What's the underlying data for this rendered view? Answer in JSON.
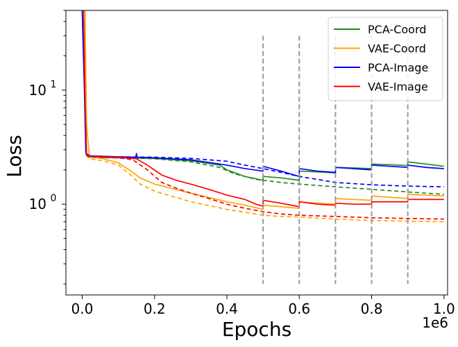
{
  "chart_data": {
    "type": "line",
    "title": "",
    "xlabel": "Epochs",
    "ylabel": "Loss",
    "x_scale_label": "1e6",
    "xlim": [
      -0.045,
      1.01
    ],
    "ylim": [
      0.16,
      50
    ],
    "yscale": "log",
    "x_ticks": [
      {
        "value": 0.0,
        "label": "0.0"
      },
      {
        "value": 0.2,
        "label": "0.2"
      },
      {
        "value": 0.4,
        "label": "0.4"
      },
      {
        "value": 0.6,
        "label": "0.6"
      },
      {
        "value": 0.8,
        "label": "0.8"
      },
      {
        "value": 1.0,
        "label": "1.0"
      }
    ],
    "y_ticks": [
      {
        "value": 1,
        "base": "10",
        "exp": "0"
      },
      {
        "value": 10,
        "base": "10",
        "exp": "1"
      }
    ],
    "vlines": {
      "x": [
        0.5,
        0.6,
        0.7,
        0.8,
        0.9
      ],
      "ymin": 0.2,
      "ymax": 30,
      "color": "#999999",
      "style": "dashed"
    },
    "legend_position": "top-right",
    "series": [
      {
        "name": "PCA-Coord",
        "color": "#228b22",
        "style": "solid",
        "points": [
          [
            0.0,
            50
          ],
          [
            0.008,
            8
          ],
          [
            0.012,
            2.7
          ],
          [
            0.02,
            2.58
          ],
          [
            0.1,
            2.55
          ],
          [
            0.2,
            2.52
          ],
          [
            0.3,
            2.4
          ],
          [
            0.38,
            2.2
          ],
          [
            0.4,
            2.0
          ],
          [
            0.45,
            1.75
          ],
          [
            0.5,
            1.62
          ],
          [
            0.5,
            1.75
          ],
          [
            0.55,
            1.7
          ],
          [
            0.6,
            1.62
          ],
          [
            0.6,
            1.95
          ],
          [
            0.65,
            1.92
          ],
          [
            0.7,
            1.88
          ],
          [
            0.7,
            2.1
          ],
          [
            0.75,
            2.08
          ],
          [
            0.8,
            2.05
          ],
          [
            0.8,
            2.25
          ],
          [
            0.85,
            2.22
          ],
          [
            0.9,
            2.18
          ],
          [
            0.9,
            2.35
          ],
          [
            0.95,
            2.25
          ],
          [
            1.0,
            2.15
          ]
        ]
      },
      {
        "name": "PCA-Coord (dashed)",
        "color": "#228b22",
        "style": "dashed",
        "points": [
          [
            0.01,
            2.7
          ],
          [
            0.02,
            2.58
          ],
          [
            0.1,
            2.55
          ],
          [
            0.2,
            2.5
          ],
          [
            0.3,
            2.35
          ],
          [
            0.38,
            2.1
          ],
          [
            0.42,
            1.85
          ],
          [
            0.48,
            1.65
          ],
          [
            0.55,
            1.55
          ],
          [
            0.6,
            1.5
          ],
          [
            0.7,
            1.42
          ],
          [
            0.8,
            1.35
          ],
          [
            0.9,
            1.28
          ],
          [
            1.0,
            1.22
          ]
        ]
      },
      {
        "name": "VAE-Coord",
        "color": "#ffa500",
        "style": "solid",
        "points": [
          [
            0.008,
            50
          ],
          [
            0.012,
            5
          ],
          [
            0.02,
            2.6
          ],
          [
            0.06,
            2.5
          ],
          [
            0.1,
            2.3
          ],
          [
            0.13,
            2.0
          ],
          [
            0.16,
            1.7
          ],
          [
            0.2,
            1.5
          ],
          [
            0.3,
            1.25
          ],
          [
            0.4,
            1.05
          ],
          [
            0.45,
            0.98
          ],
          [
            0.5,
            0.9
          ],
          [
            0.5,
            0.98
          ],
          [
            0.55,
            0.95
          ],
          [
            0.6,
            0.92
          ],
          [
            0.6,
            1.05
          ],
          [
            0.65,
            1.02
          ],
          [
            0.7,
            1.0
          ],
          [
            0.7,
            1.12
          ],
          [
            0.75,
            1.1
          ],
          [
            0.8,
            1.08
          ],
          [
            0.8,
            1.18
          ],
          [
            0.85,
            1.15
          ],
          [
            0.9,
            1.12
          ],
          [
            0.9,
            1.22
          ],
          [
            0.95,
            1.2
          ],
          [
            1.0,
            1.18
          ]
        ]
      },
      {
        "name": "VAE-Coord (dashed)",
        "color": "#ffa500",
        "style": "dashed",
        "points": [
          [
            0.01,
            2.7
          ],
          [
            0.02,
            2.5
          ],
          [
            0.06,
            2.4
          ],
          [
            0.1,
            2.2
          ],
          [
            0.13,
            1.85
          ],
          [
            0.16,
            1.5
          ],
          [
            0.2,
            1.3
          ],
          [
            0.3,
            1.05
          ],
          [
            0.4,
            0.9
          ],
          [
            0.45,
            0.85
          ],
          [
            0.5,
            0.8
          ],
          [
            0.55,
            0.78
          ],
          [
            0.6,
            0.77
          ],
          [
            0.7,
            0.74
          ],
          [
            0.8,
            0.72
          ],
          [
            0.9,
            0.71
          ],
          [
            1.0,
            0.7
          ]
        ]
      },
      {
        "name": "PCA-Image",
        "color": "#0000ff",
        "style": "solid",
        "points": [
          [
            0.0,
            50
          ],
          [
            0.006,
            10
          ],
          [
            0.01,
            2.8
          ],
          [
            0.02,
            2.65
          ],
          [
            0.1,
            2.6
          ],
          [
            0.148,
            2.58
          ],
          [
            0.15,
            2.78
          ],
          [
            0.152,
            2.58
          ],
          [
            0.2,
            2.55
          ],
          [
            0.3,
            2.45
          ],
          [
            0.4,
            2.2
          ],
          [
            0.45,
            2.05
          ],
          [
            0.5,
            1.95
          ],
          [
            0.5,
            2.15
          ],
          [
            0.55,
            1.95
          ],
          [
            0.6,
            1.75
          ],
          [
            0.6,
            2.05
          ],
          [
            0.65,
            1.95
          ],
          [
            0.7,
            1.9
          ],
          [
            0.7,
            2.1
          ],
          [
            0.75,
            2.05
          ],
          [
            0.8,
            2.0
          ],
          [
            0.8,
            2.2
          ],
          [
            0.85,
            2.15
          ],
          [
            0.9,
            2.1
          ],
          [
            0.9,
            2.2
          ],
          [
            0.95,
            2.1
          ],
          [
            1.0,
            2.05
          ]
        ]
      },
      {
        "name": "PCA-Image (dashed)",
        "color": "#0000ff",
        "style": "dashed",
        "points": [
          [
            0.01,
            2.8
          ],
          [
            0.02,
            2.65
          ],
          [
            0.1,
            2.6
          ],
          [
            0.2,
            2.58
          ],
          [
            0.3,
            2.52
          ],
          [
            0.4,
            2.38
          ],
          [
            0.45,
            2.2
          ],
          [
            0.5,
            2.05
          ],
          [
            0.55,
            1.9
          ],
          [
            0.6,
            1.75
          ],
          [
            0.65,
            1.65
          ],
          [
            0.7,
            1.55
          ],
          [
            0.8,
            1.48
          ],
          [
            0.9,
            1.44
          ],
          [
            1.0,
            1.42
          ]
        ]
      },
      {
        "name": "VAE-Image",
        "color": "#ff0000",
        "style": "solid",
        "points": [
          [
            0.004,
            50
          ],
          [
            0.008,
            8
          ],
          [
            0.012,
            2.7
          ],
          [
            0.02,
            2.62
          ],
          [
            0.1,
            2.58
          ],
          [
            0.15,
            2.5
          ],
          [
            0.18,
            2.2
          ],
          [
            0.22,
            1.8
          ],
          [
            0.26,
            1.62
          ],
          [
            0.3,
            1.5
          ],
          [
            0.35,
            1.35
          ],
          [
            0.4,
            1.2
          ],
          [
            0.45,
            1.1
          ],
          [
            0.48,
            1.0
          ],
          [
            0.5,
            0.96
          ],
          [
            0.5,
            1.08
          ],
          [
            0.55,
            1.02
          ],
          [
            0.6,
            0.95
          ],
          [
            0.6,
            1.05
          ],
          [
            0.65,
            1.0
          ],
          [
            0.7,
            0.98
          ],
          [
            0.7,
            1.02
          ],
          [
            0.75,
            1.0
          ],
          [
            0.8,
            1.0
          ],
          [
            0.8,
            1.05
          ],
          [
            0.85,
            1.05
          ],
          [
            0.9,
            1.05
          ],
          [
            0.9,
            1.1
          ],
          [
            1.0,
            1.1
          ]
        ]
      },
      {
        "name": "VAE-Image (dashed)",
        "color": "#ff0000",
        "style": "dashed",
        "points": [
          [
            0.01,
            2.7
          ],
          [
            0.02,
            2.6
          ],
          [
            0.1,
            2.55
          ],
          [
            0.14,
            2.45
          ],
          [
            0.18,
            2.0
          ],
          [
            0.22,
            1.55
          ],
          [
            0.26,
            1.38
          ],
          [
            0.3,
            1.25
          ],
          [
            0.35,
            1.12
          ],
          [
            0.4,
            1.0
          ],
          [
            0.45,
            0.92
          ],
          [
            0.5,
            0.86
          ],
          [
            0.55,
            0.82
          ],
          [
            0.6,
            0.8
          ],
          [
            0.7,
            0.78
          ],
          [
            0.8,
            0.76
          ],
          [
            0.9,
            0.75
          ],
          [
            1.0,
            0.74
          ]
        ]
      }
    ],
    "legend": [
      {
        "label": "PCA-Coord",
        "color": "#228b22"
      },
      {
        "label": "VAE-Coord",
        "color": "#ffa500"
      },
      {
        "label": "PCA-Image",
        "color": "#0000ff"
      },
      {
        "label": "VAE-Image",
        "color": "#ff0000"
      }
    ]
  }
}
